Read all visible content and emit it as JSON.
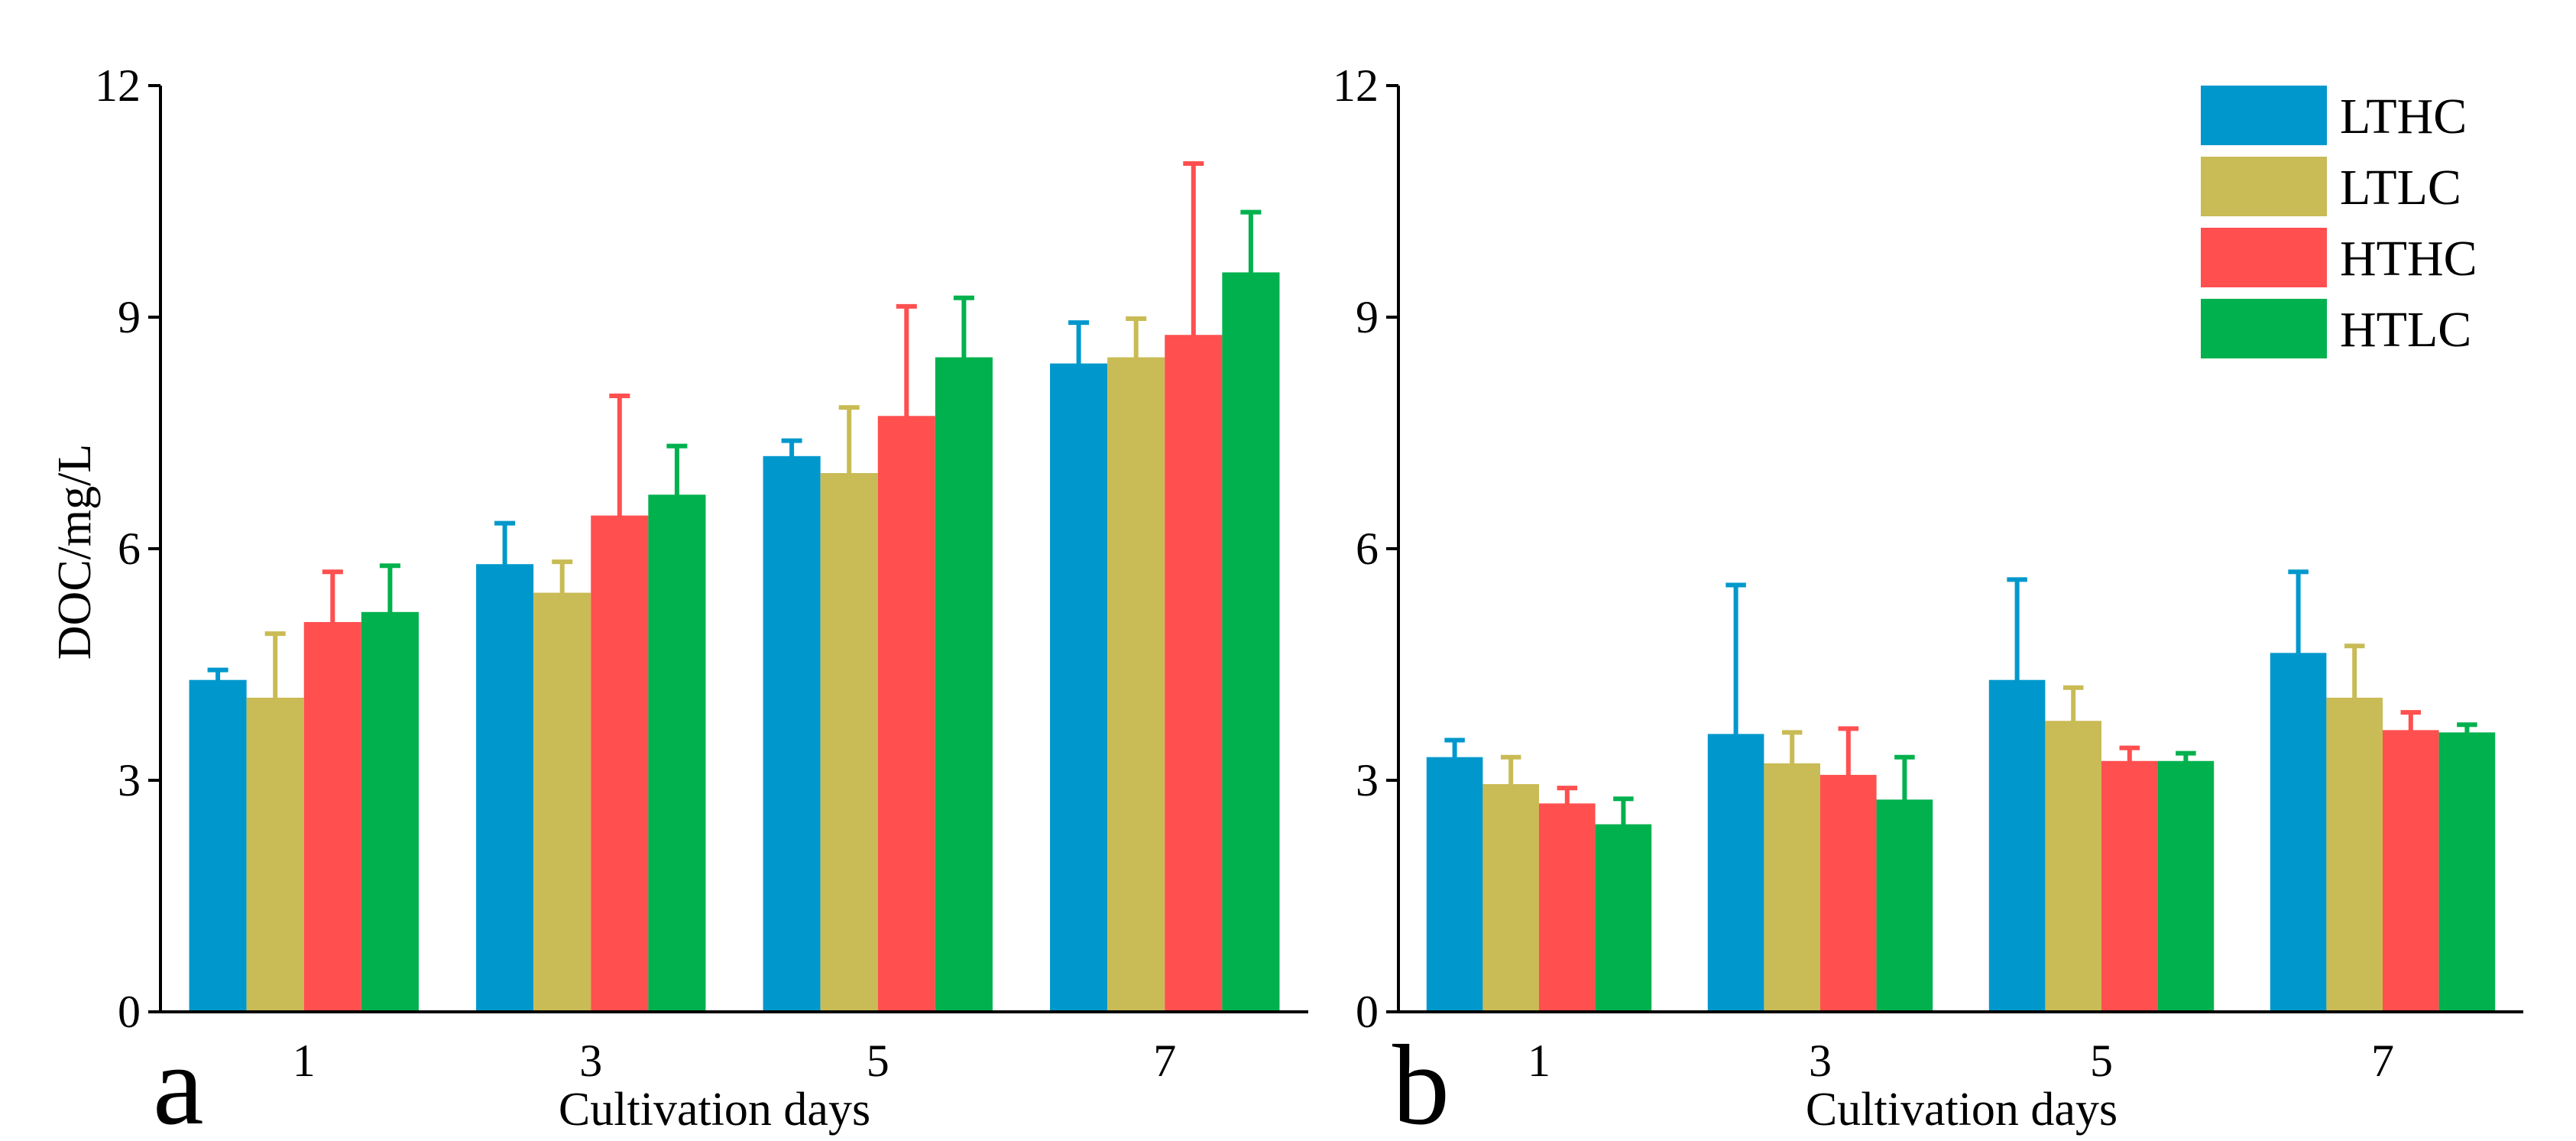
{
  "figure": {
    "panels": [
      "a",
      "b"
    ]
  },
  "colors": {
    "LTHC": "#0098cc",
    "LTLC": "#c9bb55",
    "HTHC": "#ff4f4f",
    "HTLC": "#00b14d"
  },
  "chart_data": [
    {
      "type": "bar",
      "panel": "a",
      "xlabel": "Cultivation days",
      "ylabel": "DOC/mg/L",
      "categories": [
        "1",
        "3",
        "5",
        "7"
      ],
      "ylim": [
        0,
        12
      ],
      "yticks": [
        0,
        3,
        6,
        9,
        12
      ],
      "grid": false,
      "legend": null,
      "series": [
        {
          "name": "LTHC",
          "values": [
            4.3,
            5.8,
            7.2,
            8.4
          ],
          "errors": [
            0.13,
            0.53,
            0.2,
            0.53
          ]
        },
        {
          "name": "LTLC",
          "values": [
            4.07,
            5.43,
            6.98,
            8.48
          ],
          "errors": [
            0.83,
            0.4,
            0.85,
            0.5
          ]
        },
        {
          "name": "HTHC",
          "values": [
            5.05,
            6.43,
            7.72,
            8.77
          ],
          "errors": [
            0.65,
            1.55,
            1.42,
            2.22
          ]
        },
        {
          "name": "HTLC",
          "values": [
            5.18,
            6.7,
            8.48,
            9.58
          ],
          "errors": [
            0.6,
            0.63,
            0.77,
            0.78
          ]
        }
      ]
    },
    {
      "type": "bar",
      "panel": "b",
      "xlabel": "Cultivation days",
      "ylabel": "",
      "categories": [
        "1",
        "3",
        "5",
        "7"
      ],
      "ylim": [
        0,
        12
      ],
      "yticks": [
        0,
        3,
        6,
        9,
        12
      ],
      "grid": false,
      "legend": "top-right",
      "series": [
        {
          "name": "LTHC",
          "values": [
            3.3,
            3.6,
            4.3,
            4.65
          ],
          "errors": [
            0.22,
            1.93,
            1.3,
            1.05
          ]
        },
        {
          "name": "LTLC",
          "values": [
            2.95,
            3.22,
            3.77,
            4.07
          ],
          "errors": [
            0.35,
            0.4,
            0.43,
            0.67
          ]
        },
        {
          "name": "HTHC",
          "values": [
            2.7,
            3.07,
            3.25,
            3.65
          ],
          "errors": [
            0.2,
            0.6,
            0.17,
            0.23
          ]
        },
        {
          "name": "HTLC",
          "values": [
            2.43,
            2.75,
            3.25,
            3.62
          ],
          "errors": [
            0.33,
            0.55,
            0.1,
            0.1
          ]
        }
      ]
    }
  ]
}
